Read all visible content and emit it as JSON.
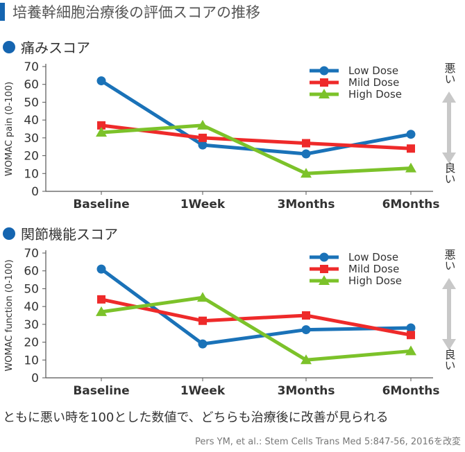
{
  "header": {
    "title": "培養幹細胞治療後の評価スコアの推移"
  },
  "sections": [
    {
      "title": "痛みスコア"
    },
    {
      "title": "関節機能スコア"
    }
  ],
  "chart_data": [
    {
      "type": "line",
      "ylabel": "WOMAC pain (0-100)",
      "categories": [
        "Baseline",
        "1Week",
        "3Months",
        "6Months"
      ],
      "ylim": [
        0,
        70
      ],
      "yticks": [
        0,
        10,
        20,
        30,
        40,
        50,
        60,
        70
      ],
      "legend_position": "top-right",
      "side_labels": {
        "top": "悪い",
        "bottom": "良い"
      },
      "series": [
        {
          "name": "Low Dose",
          "color": "#1a72b8",
          "marker": "circle",
          "values": [
            62,
            26,
            21,
            32
          ]
        },
        {
          "name": "Mild Dose",
          "color": "#ee2a2a",
          "marker": "square",
          "values": [
            37,
            30,
            27,
            24
          ]
        },
        {
          "name": "High Dose",
          "color": "#7cc22a",
          "marker": "triangle",
          "values": [
            33,
            37,
            10,
            13
          ]
        }
      ]
    },
    {
      "type": "line",
      "ylabel": "WOMAC function (0-100)",
      "categories": [
        "Baseline",
        "1Week",
        "3Months",
        "6Months"
      ],
      "ylim": [
        0,
        70
      ],
      "yticks": [
        0,
        10,
        20,
        30,
        40,
        50,
        60,
        70
      ],
      "legend_position": "top-right",
      "side_labels": {
        "top": "悪い",
        "bottom": "良い"
      },
      "series": [
        {
          "name": "Low Dose",
          "color": "#1a72b8",
          "marker": "circle",
          "values": [
            61,
            19,
            27,
            28
          ]
        },
        {
          "name": "Mild Dose",
          "color": "#ee2a2a",
          "marker": "square",
          "values": [
            44,
            32,
            35,
            24
          ]
        },
        {
          "name": "High Dose",
          "color": "#7cc22a",
          "marker": "triangle",
          "values": [
            37,
            45,
            10,
            15
          ]
        }
      ]
    }
  ],
  "footnote": "ともに悪い時を100とした数値で、どちらも治療後に改善が見られる",
  "source": "Pers YM, et al.: Stem Cells Trans Med 5:847-56, 2016を改変"
}
